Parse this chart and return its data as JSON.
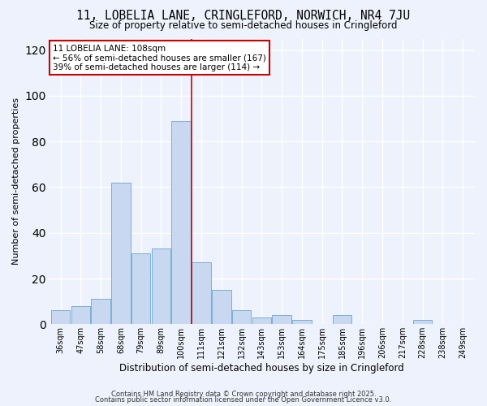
{
  "title": "11, LOBELIA LANE, CRINGLEFORD, NORWICH, NR4 7JU",
  "subtitle": "Size of property relative to semi-detached houses in Cringleford",
  "xlabel": "Distribution of semi-detached houses by size in Cringleford",
  "ylabel": "Number of semi-detached properties",
  "categories": [
    "36sqm",
    "47sqm",
    "58sqm",
    "68sqm",
    "79sqm",
    "89sqm",
    "100sqm",
    "111sqm",
    "121sqm",
    "132sqm",
    "143sqm",
    "153sqm",
    "164sqm",
    "175sqm",
    "185sqm",
    "196sqm",
    "206sqm",
    "217sqm",
    "228sqm",
    "238sqm",
    "249sqm"
  ],
  "values": [
    6,
    8,
    11,
    62,
    31,
    33,
    89,
    27,
    15,
    6,
    3,
    4,
    2,
    0,
    4,
    0,
    0,
    0,
    2,
    0,
    0
  ],
  "bar_color": "#c8d8f0",
  "bar_edge_color": "#7aafd4",
  "vline_x": 6.5,
  "vline_color": "#cc0000",
  "annotation_title": "11 LOBELIA LANE: 108sqm",
  "annotation_line1": "← 56% of semi-detached houses are smaller (167)",
  "annotation_line2": "39% of semi-detached houses are larger (114) →",
  "annotation_box_color": "#ffffff",
  "annotation_box_edge": "#cc0000",
  "ylim": [
    0,
    125
  ],
  "yticks": [
    0,
    20,
    40,
    60,
    80,
    100,
    120
  ],
  "background_color": "#eef2fc",
  "grid_color": "#ffffff",
  "footer1": "Contains HM Land Registry data © Crown copyright and database right 2025.",
  "footer2": "Contains public sector information licensed under the Open Government Licence v3.0."
}
